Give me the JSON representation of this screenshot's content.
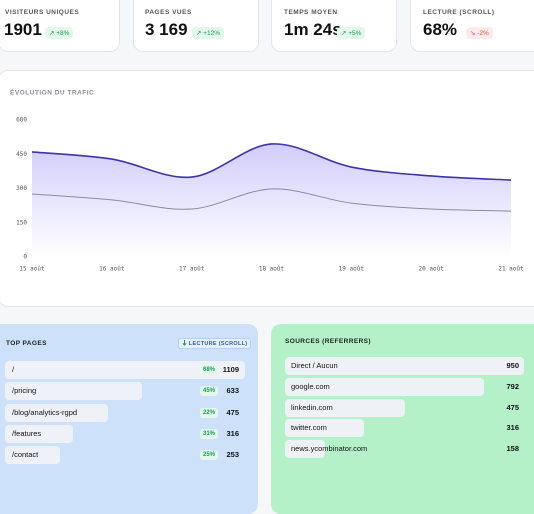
{
  "kpis": [
    {
      "label": "VISITEURS UNIQUES",
      "value": "1901",
      "delta": "↗ +8%",
      "delta_color": "#1a9b5a",
      "delta_bg": "#e3f7ea"
    },
    {
      "label": "PAGES VUES",
      "value": "3 169",
      "delta": "↗ +12%",
      "delta_color": "#1a9b5a",
      "delta_bg": "#e3f7ea"
    },
    {
      "label": "TEMPS MOYEN",
      "value": "1m 24s",
      "delta": "↗ +5%",
      "delta_color": "#1a9b5a",
      "delta_bg": "#e3f7ea"
    },
    {
      "label": "LECTURE (SCROLL)",
      "value": "68%",
      "delta": "↘ -2%",
      "delta_color": "#d9534f",
      "delta_bg": "#fdeaea"
    }
  ],
  "chart_data": {
    "type": "line",
    "title": "ÉVOLUTION DU TRAFIC",
    "categories": [
      "15 août",
      "16 août",
      "17 août",
      "18 août",
      "19 août",
      "20 août",
      "21 août"
    ],
    "series": [
      {
        "color": "#3b35a8",
        "area": true,
        "values": [
          460,
          429,
          350,
          495,
          394,
          355,
          337
        ]
      },
      {
        "color": "#8a8aa3",
        "area": false,
        "values": [
          276,
          250,
          210,
          298,
          236,
          210,
          201
        ]
      }
    ],
    "ylim": [
      0,
      600
    ],
    "yticks": [
      0,
      150,
      300,
      450,
      600
    ],
    "grid": false
  },
  "top_pages": {
    "title": "TOP PAGES",
    "badge": "LECTURE (SCROLL)",
    "rows": [
      {
        "path": "/",
        "scroll": "68%",
        "count": 1109
      },
      {
        "path": "/pricing",
        "scroll": "45%",
        "count": 633
      },
      {
        "path": "/blog/analytics-rgpd",
        "scroll": "22%",
        "count": 475
      },
      {
        "path": "/features",
        "scroll": "31%",
        "count": 316
      },
      {
        "path": "/contact",
        "scroll": "25%",
        "count": 253
      }
    ]
  },
  "sources": {
    "title": "SOURCES (REFERRERS)",
    "rows": [
      {
        "name": "Direct / Aucun",
        "count": 950
      },
      {
        "name": "google.com",
        "count": 792
      },
      {
        "name": "linkedin.com",
        "count": 475
      },
      {
        "name": "twitter.com",
        "count": 316
      },
      {
        "name": "news.ycombinator.com",
        "count": 158
      }
    ]
  }
}
